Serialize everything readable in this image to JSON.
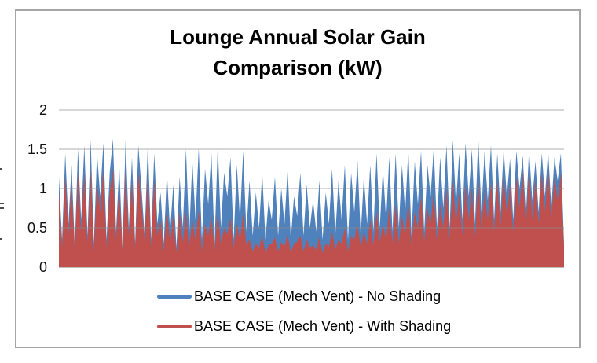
{
  "chart_data": {
    "type": "area",
    "title": "Lounge Annual Solar Gain Comparison (kW)",
    "title_lines": [
      "Lounge Annual Solar Gain",
      "Comparison (kW)"
    ],
    "xlabel": "",
    "ylabel": "",
    "ylim": [
      0,
      2
    ],
    "yticks": [
      0,
      0.5,
      1,
      1.5,
      2
    ],
    "ytick_labels": [
      "0",
      "0.5",
      "1",
      "1.5",
      "2"
    ],
    "xtick_labels": [],
    "grid": true,
    "gridline_color": "#8c8c8c",
    "frame_color": "#a6a6a6",
    "legend_position": "bottom",
    "series": [
      {
        "name": "BASE CASE (Mech Vent) - No Shading",
        "color": "#4F81BD",
        "values": [
          1.15,
          0.35,
          1.45,
          0.55,
          1.3,
          0.25,
          1.5,
          0.6,
          1.55,
          0.4,
          1.62,
          0.3,
          1.45,
          0.9,
          1.58,
          0.35,
          1.2,
          1.63,
          0.45,
          1.3,
          0.25,
          1.62,
          0.5,
          1.4,
          0.3,
          1.55,
          1.0,
          0.4,
          1.58,
          0.35,
          1.45,
          0.55,
          0.95,
          0.3,
          1.2,
          0.45,
          1.05,
          0.25,
          1.15,
          0.5,
          1.5,
          0.4,
          1.35,
          0.6,
          1.52,
          0.35,
          1.25,
          0.8,
          1.45,
          0.3,
          1.55,
          0.5,
          1.2,
          0.9,
          1.4,
          0.35,
          1.3,
          0.6,
          1.48,
          0.45,
          1.1,
          0.4,
          0.95,
          0.5,
          1.2,
          0.35,
          0.85,
          0.6,
          1.15,
          0.4,
          1.0,
          0.55,
          1.25,
          0.35,
          0.9,
          0.65,
          1.2,
          0.4,
          1.05,
          0.5,
          0.85,
          0.45,
          1.1,
          0.35,
          0.95,
          0.55,
          1.25,
          0.4,
          1.1,
          0.6,
          1.3,
          0.35,
          1.2,
          0.7,
          1.35,
          0.4,
          1.15,
          0.55,
          1.3,
          0.45,
          1.45,
          0.5,
          1.25,
          0.6,
          1.4,
          0.45,
          1.45,
          0.5,
          1.3,
          0.7,
          1.5,
          0.4,
          1.35,
          0.8,
          1.48,
          0.45,
          1.3,
          0.9,
          1.52,
          0.5,
          1.4,
          0.75,
          1.55,
          0.5,
          1.62,
          0.8,
          1.45,
          0.6,
          1.58,
          0.9,
          1.5,
          0.55,
          1.65,
          0.7,
          1.48,
          0.85,
          1.55,
          0.6,
          1.45,
          0.7,
          1.5,
          0.9,
          1.38,
          0.6,
          1.48,
          1.0,
          1.42,
          0.65,
          1.5,
          0.85,
          1.35,
          0.7,
          1.45,
          0.9,
          1.48,
          0.75,
          1.4,
          1.1,
          1.45,
          0.3
        ]
      },
      {
        "name": "BASE CASE (Mech Vent) - With Shading",
        "color": "#C0504D",
        "values": [
          0.95,
          0.25,
          1.15,
          0.4,
          1.05,
          0.2,
          1.2,
          0.45,
          1.2,
          0.3,
          1.25,
          0.2,
          1.1,
          0.7,
          1.22,
          0.25,
          0.95,
          1.25,
          0.35,
          1.0,
          0.2,
          1.24,
          0.4,
          1.1,
          0.25,
          1.2,
          0.8,
          0.3,
          1.22,
          0.25,
          1.12,
          0.4,
          0.6,
          0.2,
          0.75,
          0.3,
          0.65,
          0.18,
          0.7,
          0.32,
          0.7,
          0.25,
          0.6,
          0.35,
          0.72,
          0.2,
          0.55,
          0.4,
          0.65,
          0.22,
          0.7,
          0.3,
          0.5,
          0.42,
          0.62,
          0.25,
          0.55,
          0.35,
          0.68,
          0.28,
          0.35,
          0.2,
          0.3,
          0.25,
          0.4,
          0.18,
          0.28,
          0.3,
          0.38,
          0.2,
          0.32,
          0.26,
          0.42,
          0.18,
          0.3,
          0.32,
          0.4,
          0.2,
          0.35,
          0.25,
          0.28,
          0.22,
          0.38,
          0.18,
          0.3,
          0.26,
          0.45,
          0.22,
          0.35,
          0.3,
          0.5,
          0.2,
          0.4,
          0.35,
          0.55,
          0.25,
          0.45,
          0.3,
          0.6,
          0.28,
          0.7,
          0.32,
          0.55,
          0.35,
          0.75,
          0.3,
          0.8,
          0.3,
          0.65,
          0.4,
          0.85,
          0.28,
          0.7,
          0.5,
          0.9,
          0.32,
          0.75,
          0.55,
          0.95,
          0.35,
          0.8,
          0.5,
          1.0,
          0.35,
          1.1,
          0.55,
          0.95,
          0.4,
          1.05,
          0.6,
          1.0,
          0.38,
          1.15,
          0.5,
          0.98,
          0.6,
          1.08,
          0.45,
          1.1,
          0.5,
          1.2,
          0.65,
          1.05,
          0.45,
          1.15,
          0.75,
          1.22,
          0.5,
          1.25,
          0.6,
          1.1,
          0.55,
          1.2,
          0.7,
          1.28,
          0.6,
          1.15,
          0.85,
          1.2,
          0.25
        ]
      }
    ]
  }
}
